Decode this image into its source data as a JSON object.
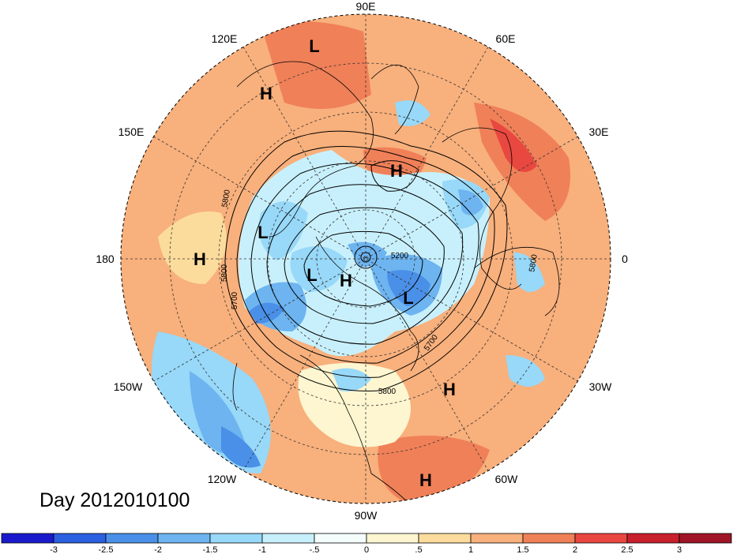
{
  "title": "Day 2012010100",
  "longitude_labels": [
    "90E",
    "120E",
    "60E",
    "150E",
    "30E",
    "180",
    "0",
    "150W",
    "30W",
    "120W",
    "60W",
    "90W"
  ],
  "pressure_centers": [
    "L",
    "H",
    "H",
    "L",
    "H",
    "L",
    "H",
    "L",
    "H",
    "H"
  ],
  "contour_labels": [
    "5800",
    "5800",
    "5700",
    "5200",
    "5800",
    "5700",
    "5800"
  ],
  "colorbar": {
    "tick_labels": [
      "-3",
      "-2.5",
      "-2",
      "-1.5",
      "-1",
      "-.5",
      "0",
      ".5",
      "1",
      "1.5",
      "2",
      "2.5",
      "3"
    ],
    "colors": [
      "#1a1acc",
      "#2b60e0",
      "#4a90e8",
      "#6db4f0",
      "#98d8f8",
      "#c8f0fc",
      "#f4fcfc",
      "#fdf6d0",
      "#fcdc9c",
      "#f8b07c",
      "#f08058",
      "#e84840",
      "#c8202c",
      "#a01428"
    ]
  }
}
